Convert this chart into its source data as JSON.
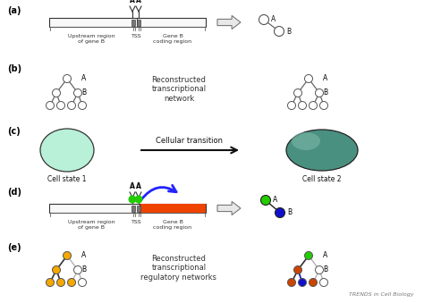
{
  "background_color": "#ffffff",
  "panel_label_fontsize": 7,
  "panel_label_color": "#000000",
  "upstream_label": "Upstream region\nof gene B",
  "tss_label": "TSS",
  "coding_label": "Gene B\ncoding region",
  "cell_state1_color": "#b8f0d8",
  "cell_state2_color": "#4a9080",
  "cell_state1_label": "Cell state 1",
  "cell_state2_label": "Cell state 2",
  "transition_label": "Cellular transition",
  "recon_label_b": "Reconstructed\ntranscriptional\nnetwork",
  "recon_label_e": "Reconstructed\ntranscriptional\nregulatory networks",
  "trends_label": "TRENDS in Cell Biology",
  "orange_color": "#F5A800",
  "dark_orange_color": "#CC4400",
  "green_color": "#22CC00",
  "blue_color": "#1010CC",
  "red_orange_bar": "#EE4400",
  "blue_arrow_color": "#2222FF",
  "node_edge_color": "#555555",
  "bar_fill": "#f8f8f8",
  "bar_edge": "#333333",
  "tss_fill": "#777777",
  "hollow_arrow_fc": "#e8e8e8",
  "hollow_arrow_ec": "#777777"
}
